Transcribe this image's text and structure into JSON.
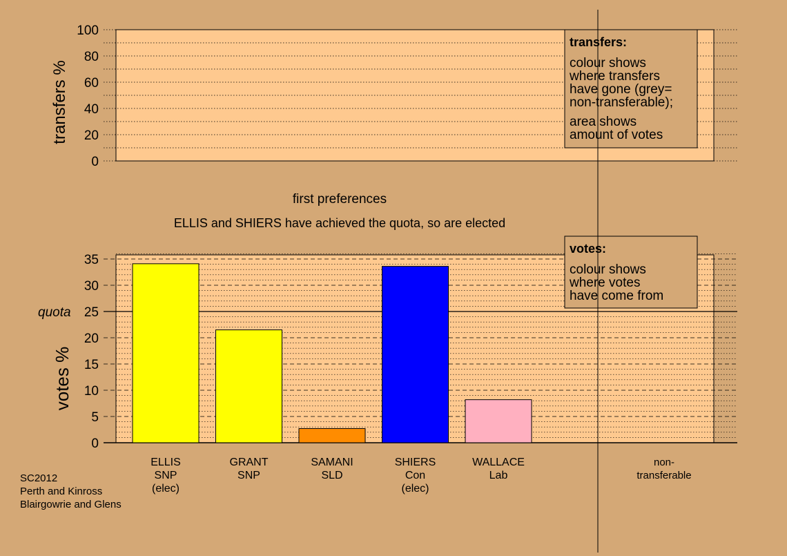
{
  "colors": {
    "background": "#d4a876",
    "panel": "#fec98f",
    "note_box": "#d4a876"
  },
  "top_chart": {
    "ylabel": "transfers %",
    "ylim": [
      0,
      100
    ],
    "ticks": [
      "0",
      "20",
      "40",
      "60",
      "80",
      "100"
    ],
    "note": {
      "title": "transfers:",
      "lines": [
        "colour shows",
        "where transfers",
        "have gone (grey=",
        "non-transferable);"
      ],
      "lines2": [
        "area shows",
        "amount of votes"
      ]
    }
  },
  "headings": {
    "stage": "first preferences",
    "status": "ELLIS and SHIERS have achieved the quota, so are elected"
  },
  "chart_data": {
    "type": "bar",
    "ylabel": "votes %",
    "ylim": [
      0,
      36
    ],
    "yticks": [
      "0",
      "5",
      "10",
      "15",
      "20",
      "25",
      "30",
      "35"
    ],
    "quota": 25,
    "quota_label": "quota",
    "bars": [
      {
        "label": [
          "ELLIS",
          "SNP",
          "(elec)"
        ],
        "value": 34.1,
        "color": "#ffff00"
      },
      {
        "label": [
          "GRANT",
          "SNP"
        ],
        "value": 21.5,
        "color": "#ffff00"
      },
      {
        "label": [
          "SAMANI",
          "SLD"
        ],
        "value": 2.7,
        "color": "#ff8c00"
      },
      {
        "label": [
          "SHIERS",
          "Con",
          "(elec)"
        ],
        "value": 33.6,
        "color": "#0000ff"
      },
      {
        "label": [
          "WALLACE",
          "Lab"
        ],
        "value": 8.2,
        "color": "#ffb0c0"
      }
    ],
    "nontransferable_label": [
      "non-",
      "transferable"
    ]
  },
  "votes_note": {
    "title": "votes:",
    "lines": [
      "colour shows",
      "where votes",
      "have come from"
    ]
  },
  "footer": {
    "lines": [
      "SC2012",
      "Perth and Kinross",
      "Blairgowrie and Glens"
    ]
  }
}
